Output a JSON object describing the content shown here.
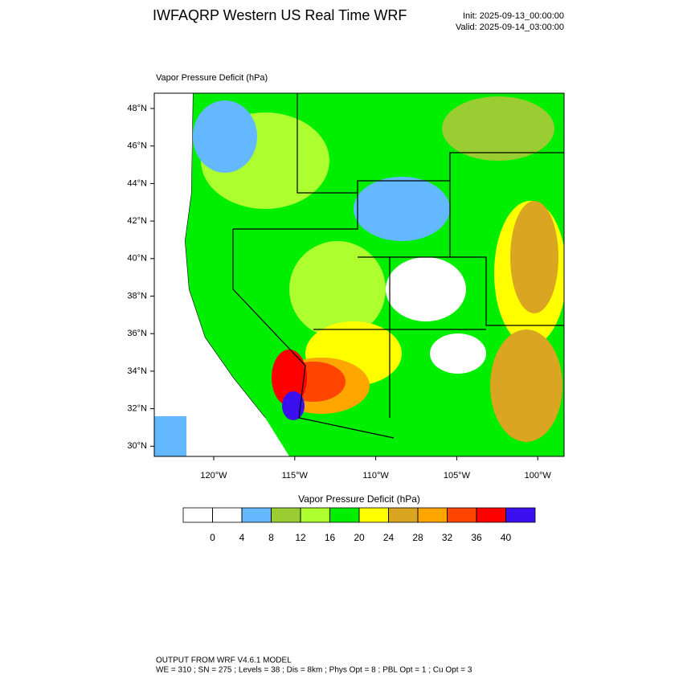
{
  "header": {
    "title": "IWFAQRP Western US Real Time WRF",
    "init": "Init: 2025-09-13_00:00:00",
    "valid": "Valid: 2025-09-14_03:00:00"
  },
  "map": {
    "label": "Vapor Pressure Deficit   (hPa)",
    "lat_labels": [
      "48°N",
      "46°N",
      "44°N",
      "42°N",
      "40°N",
      "38°N",
      "36°N",
      "34°N",
      "32°N",
      "30°N"
    ],
    "lon_labels": [
      "120°W",
      "115°W",
      "110°W",
      "105°W",
      "100°W"
    ]
  },
  "colorbar": {
    "title": "Vapor Pressure Deficit  (hPa)",
    "colors": [
      "#ffffff",
      "#ffffff",
      "#63b8ff",
      "#9acd32",
      "#adff2f",
      "#00ee00",
      "#ffff00",
      "#daa520",
      "#ffa500",
      "#ff4500",
      "#ff0000",
      "#3a10f0"
    ],
    "ticks": [
      0,
      4,
      8,
      12,
      16,
      20,
      24,
      28,
      32,
      36,
      40
    ]
  },
  "footer": {
    "line1": "OUTPUT FROM WRF V4.6.1 MODEL",
    "line2": "WE = 310 ; SN = 275 ; Levels = 38 ; Dis = 8km ; Phys Opt = 8 ; PBL Opt = 1 ; Cu Opt = 3"
  }
}
